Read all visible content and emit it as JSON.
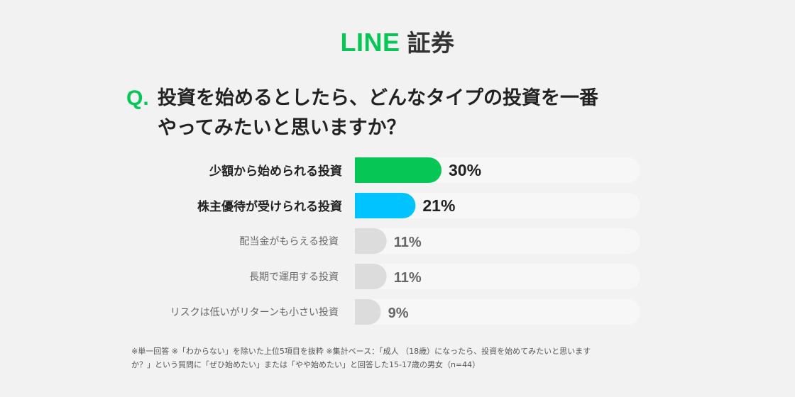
{
  "logo": {
    "brand": "LINE",
    "name": "証券"
  },
  "question": {
    "prefix": "Q.",
    "line1": "投資を始めるとしたら、どんなタイプの投資を一番",
    "line2": "やってみたいと思いますか？"
  },
  "chart_data": {
    "type": "bar",
    "orientation": "horizontal",
    "categories": [
      "少額から始められる投資",
      "株主優待が受けられる投資",
      "配当金がもらえる投資",
      "長期で運用する投資",
      "リスクは低いがリターンも小さい投資"
    ],
    "values": [
      30,
      21,
      11,
      11,
      9
    ],
    "value_labels": [
      "30%",
      "21%",
      "11%",
      "11%",
      "9%"
    ],
    "unit": "%",
    "xlim": [
      0,
      100
    ],
    "colors": [
      "#06c755",
      "#00c3ff",
      "#dcdcdc",
      "#dcdcdc",
      "#dcdcdc"
    ],
    "track_color": "#f7f7f7",
    "title": "",
    "xlabel": "",
    "ylabel": ""
  },
  "footnote": {
    "line1": "※単一回答 ※「わからない」を除いた上位5項目を抜粋 ※集計ベース：「成人 （18歳）になったら、投資を始めてみたいと思います",
    "line2": "か？」という質問に「ぜひ始めたい」または「やや始めたい」と回答した15-17歳の男女（n=44）"
  }
}
